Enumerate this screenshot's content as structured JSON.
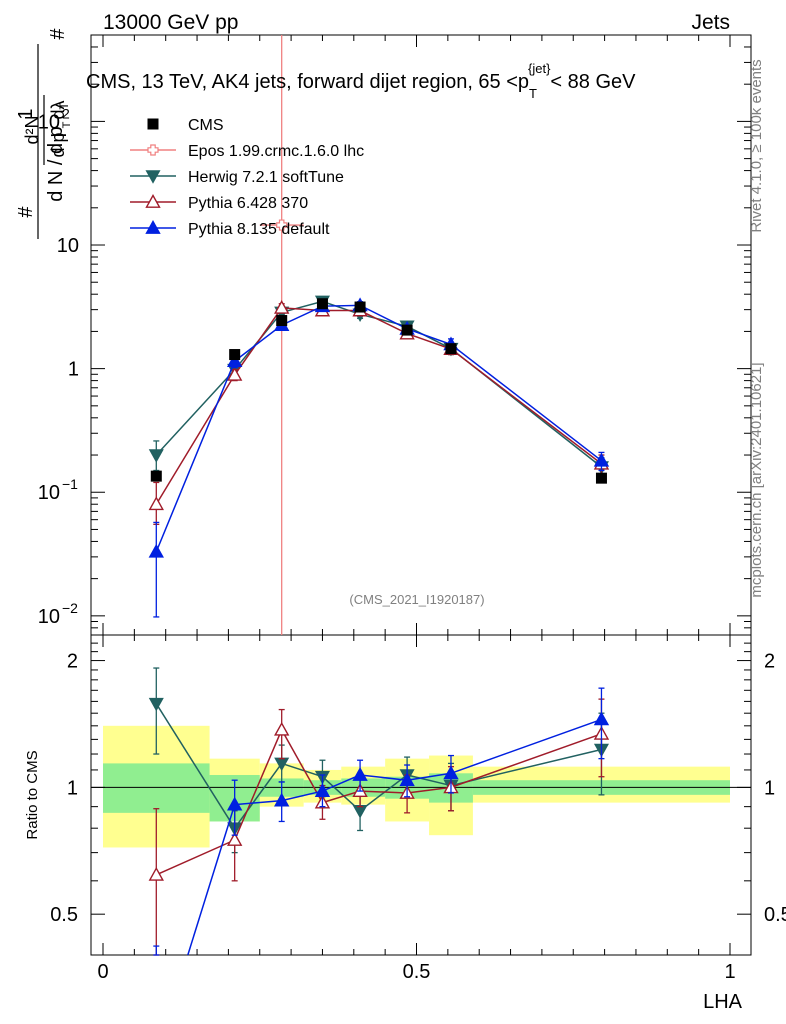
{
  "header": {
    "left": "13000 GeV pp",
    "right": "Jets"
  },
  "chart_data": {
    "type": "scatter",
    "title": "CMS, 13 TeV, AK4 jets, forward dijet region, 65 <p_T^{jet}< 88 GeV",
    "title_parts": {
      "pre": "CMS, 13 TeV, AK4 jets, forward dijet region, 65 <p",
      "sub": "T",
      "sup": "{jet}",
      "post": "< 88 GeV"
    },
    "xlabel": "LHA",
    "ylabel_main": "1/N dN/dλ",
    "ylabel_ratio": "Ratio to CMS",
    "analysis_label": "(CMS_2021_I1920187)",
    "side_label_top": "Rivet 4.1.0, ≥ 100k events",
    "side_label_bottom": "mcplots.cern.ch [arXiv:2401.10621]",
    "xlim": [
      0,
      1
    ],
    "ylim_main": [
      0.007,
      500
    ],
    "ylim_ratio": [
      0.4,
      2.3
    ],
    "x_ticks": [
      {
        "v": 0,
        "label": "0"
      },
      {
        "v": 0.5,
        "label": "0.5"
      },
      {
        "v": 1,
        "label": "1"
      }
    ],
    "y_ticks_main": [
      {
        "v": 0.01,
        "base": "10",
        "exp": "−2"
      },
      {
        "v": 0.1,
        "base": "10",
        "exp": "−1"
      },
      {
        "v": 1,
        "base": "1",
        "exp": ""
      },
      {
        "v": 10,
        "base": "10",
        "exp": ""
      },
      {
        "v": 100,
        "base": "10",
        "exp": "2"
      }
    ],
    "y_ticks_ratio": [
      {
        "v": 0.5,
        "label": "0.5"
      },
      {
        "v": 1,
        "label": "1"
      },
      {
        "v": 2,
        "label": "2"
      }
    ],
    "bins": [
      {
        "lo": 0.0,
        "hi": 0.17
      },
      {
        "lo": 0.17,
        "hi": 0.25
      },
      {
        "lo": 0.25,
        "hi": 0.32
      },
      {
        "lo": 0.32,
        "hi": 0.38
      },
      {
        "lo": 0.38,
        "hi": 0.45
      },
      {
        "lo": 0.45,
        "hi": 0.52
      },
      {
        "lo": 0.52,
        "hi": 0.59
      },
      {
        "lo": 0.59,
        "hi": 1.0
      }
    ],
    "data": {
      "name": "CMS",
      "x": [
        0.085,
        0.21,
        0.285,
        0.35,
        0.41,
        0.485,
        0.555,
        0.795
      ],
      "y": [
        0.135,
        1.3,
        2.45,
        3.35,
        3.15,
        2.05,
        1.45,
        0.13
      ],
      "stat_band": [
        [
          0.87,
          1.14
        ],
        [
          0.83,
          1.07
        ],
        [
          0.95,
          1.05
        ],
        [
          0.96,
          1.04
        ],
        [
          0.95,
          1.05
        ],
        [
          0.94,
          1.06
        ],
        [
          0.92,
          1.08
        ],
        [
          0.96,
          1.04
        ]
      ],
      "total_band": [
        [
          0.72,
          1.4
        ],
        [
          0.83,
          1.17
        ],
        [
          0.9,
          1.14
        ],
        [
          0.92,
          1.1
        ],
        [
          0.91,
          1.12
        ],
        [
          0.83,
          1.17
        ],
        [
          0.77,
          1.19
        ],
        [
          0.92,
          1.12
        ]
      ]
    },
    "series": [
      {
        "name": "Epos 1.99.crmc.1.6.0 lhc",
        "color": "#f08080",
        "marker": "open-cross",
        "x": [
          0.285
        ],
        "y": [
          14.5
        ],
        "err": [
          [
            0.001,
            1000
          ]
        ],
        "xerr": [
          0.035
        ],
        "ratio": [],
        "ratio_err": []
      },
      {
        "name": "Herwig 7.2.1 softTune",
        "color": "#216161",
        "marker": "down-triangle",
        "x": [
          0.085,
          0.21,
          0.285,
          0.35,
          0.41,
          0.485,
          0.555,
          0.795
        ],
        "y": [
          0.2,
          0.98,
          2.85,
          3.5,
          2.75,
          2.2,
          1.45,
          0.16
        ],
        "err": [
          [
            0.15,
            0.26
          ],
          [
            0.92,
            1.05
          ],
          [
            2.6,
            3.1
          ],
          [
            3.3,
            3.7
          ],
          [
            2.55,
            2.95
          ],
          [
            2.05,
            2.35
          ],
          [
            1.3,
            1.6
          ],
          [
            0.13,
            0.19
          ]
        ],
        "ratio": [
          1.58,
          0.8,
          1.14,
          1.06,
          0.88,
          1.07,
          1.01,
          1.23
        ],
        "ratio_err": [
          [
            1.2,
            1.92
          ],
          [
            0.7,
            0.88
          ],
          [
            1.03,
            1.26
          ],
          [
            0.95,
            1.16
          ],
          [
            0.79,
            0.97
          ],
          [
            0.96,
            1.18
          ],
          [
            0.88,
            1.14
          ],
          [
            0.96,
            1.5
          ]
        ]
      },
      {
        "name": "Pythia 6.428 370",
        "color": "#a01c2a",
        "marker": "open-up-triangle",
        "x": [
          0.085,
          0.21,
          0.285,
          0.35,
          0.41,
          0.485,
          0.555,
          0.795
        ],
        "y": [
          0.08,
          0.89,
          3.1,
          2.95,
          2.95,
          1.92,
          1.44,
          0.17
        ],
        "err": [
          [
            0.055,
            0.12
          ],
          [
            0.8,
            0.98
          ],
          [
            2.85,
            3.35
          ],
          [
            2.75,
            3.15
          ],
          [
            2.75,
            3.15
          ],
          [
            1.75,
            2.1
          ],
          [
            1.3,
            1.58
          ],
          [
            0.14,
            0.2
          ]
        ],
        "ratio": [
          0.62,
          0.75,
          1.37,
          0.92,
          0.98,
          0.97,
          1.0,
          1.34
        ],
        "ratio_err": [
          [
            0.37,
            0.89
          ],
          [
            0.6,
            0.9
          ],
          [
            1.17,
            1.53
          ],
          [
            0.84,
            1.01
          ],
          [
            0.9,
            1.06
          ],
          [
            0.87,
            1.07
          ],
          [
            0.88,
            1.12
          ],
          [
            1.06,
            1.62
          ]
        ]
      },
      {
        "name": "Pythia 8.135 default",
        "color": "#0020e0",
        "marker": "up-triangle",
        "x": [
          0.085,
          0.21,
          0.285,
          0.35,
          0.41,
          0.485,
          0.555,
          0.795
        ],
        "y": [
          0.033,
          1.15,
          2.25,
          3.2,
          3.25,
          2.1,
          1.57,
          0.18
        ],
        "err": [
          [
            0.0098,
            0.057
          ],
          [
            1.02,
            1.28
          ],
          [
            2.05,
            2.45
          ],
          [
            3.0,
            3.4
          ],
          [
            3.02,
            3.48
          ],
          [
            1.95,
            2.25
          ],
          [
            1.4,
            1.74
          ],
          [
            0.15,
            0.21
          ]
        ],
        "ratio": [
          0.23,
          0.91,
          0.93,
          0.98,
          1.07,
          1.04,
          1.08,
          1.45
        ],
        "ratio_err": [
          [
            0.07,
            0.42
          ],
          [
            0.77,
            1.04
          ],
          [
            0.83,
            1.03
          ],
          [
            0.9,
            1.07
          ],
          [
            0.98,
            1.16
          ],
          [
            0.95,
            1.13
          ],
          [
            0.97,
            1.19
          ],
          [
            1.17,
            1.72
          ]
        ]
      }
    ],
    "legend": [
      {
        "name": "CMS",
        "marker": "square",
        "color": "#000000"
      },
      {
        "name": "Epos 1.99.crmc.1.6.0 lhc",
        "marker": "open-cross",
        "color": "#f08080"
      },
      {
        "name": "Herwig 7.2.1 softTune",
        "marker": "down-triangle",
        "color": "#216161"
      },
      {
        "name": "Pythia 6.428 370",
        "marker": "open-up-triangle",
        "color": "#a01c2a"
      },
      {
        "name": "Pythia 8.135 default",
        "marker": "up-triangle",
        "color": "#0020e0"
      }
    ],
    "colors": {
      "stat_band": "#90ee90",
      "total_band": "#ffff90"
    }
  }
}
